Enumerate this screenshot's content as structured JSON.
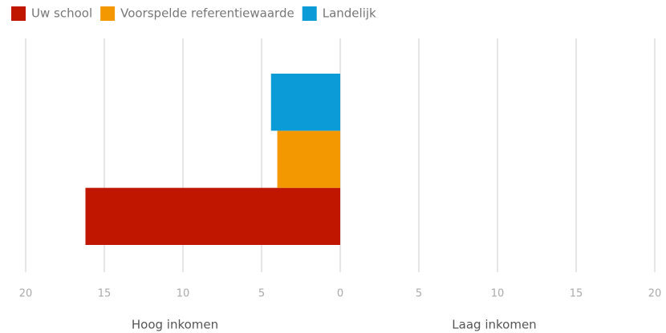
{
  "chart_data": {
    "type": "bar",
    "orientation": "horizontal",
    "categories": [
      null
    ],
    "series": [
      {
        "name": "Uw school",
        "color": "#c01600",
        "values": [
          -16.2
        ]
      },
      {
        "name": "Voorspelde referentiewaarde",
        "color": "#f39800",
        "values": [
          -4.0
        ]
      },
      {
        "name": "Landelijk",
        "color": "#0b9bd7",
        "values": [
          -4.4
        ]
      }
    ],
    "xlim": [
      -20,
      20
    ],
    "xticks": [
      {
        "value": -20,
        "label": "20"
      },
      {
        "value": -15,
        "label": "15"
      },
      {
        "value": -10,
        "label": "10"
      },
      {
        "value": -5,
        "label": "5"
      },
      0,
      5,
      10,
      15,
      20
    ],
    "xlabel_left": "Hoog inkomen",
    "xlabel_right": "Laag inkomen",
    "grid": true,
    "legend": "top-left"
  }
}
